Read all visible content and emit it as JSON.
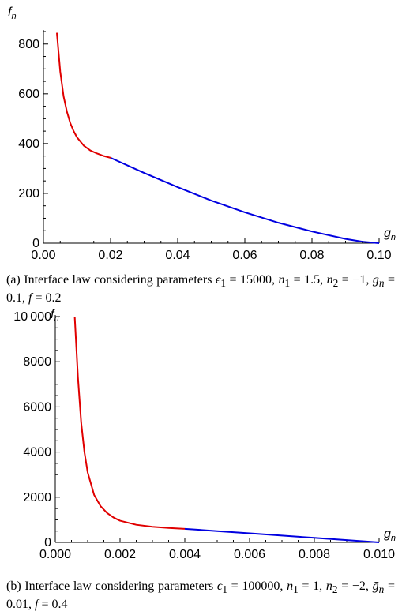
{
  "colors": {
    "initial_branch": "#e00000",
    "linear_branch": "#0000e0",
    "axis": "#000000"
  },
  "chart_data": [
    {
      "type": "line",
      "panel": "a",
      "xlabel_base": "g",
      "xlabel_sub": "n",
      "ylabel_base": "f",
      "ylabel_sub": "n",
      "xlim": [
        0,
        0.1
      ],
      "ylim": [
        0,
        850
      ],
      "x_ticks": [
        0,
        0.02,
        0.04,
        0.06,
        0.08,
        0.1
      ],
      "x_tick_labels": [
        "0.00",
        "0.02",
        "0.04",
        "0.06",
        "0.08",
        "0.10"
      ],
      "y_ticks": [
        0,
        200,
        400,
        600,
        800
      ],
      "y_tick_labels": [
        "0",
        "200",
        "400",
        "600",
        "800"
      ],
      "series": [
        {
          "color": "#e00000",
          "x": [
            0.004,
            0.005,
            0.006,
            0.007,
            0.008,
            0.009,
            0.01,
            0.012,
            0.014,
            0.016,
            0.018,
            0.02
          ],
          "y": [
            845,
            690,
            590,
            528,
            482,
            450,
            425,
            392,
            372,
            360,
            350,
            343
          ]
        },
        {
          "color": "#0000e0",
          "x": [
            0.02,
            0.03,
            0.04,
            0.05,
            0.06,
            0.07,
            0.08,
            0.09,
            0.095,
            0.1
          ],
          "y": [
            343,
            282,
            225,
            171,
            124,
            82,
            47,
            17,
            6,
            0
          ]
        }
      ]
    },
    {
      "type": "line",
      "panel": "b",
      "xlabel_base": "g",
      "xlabel_sub": "n",
      "ylabel_base": "f",
      "ylabel_sub": "n",
      "xlim": [
        0,
        0.01
      ],
      "ylim": [
        0,
        10000
      ],
      "x_ticks": [
        0,
        0.002,
        0.004,
        0.006,
        0.008,
        0.01
      ],
      "x_tick_labels": [
        "0.000",
        "0.002",
        "0.004",
        "0.006",
        "0.008",
        "0.010"
      ],
      "y_ticks": [
        0,
        2000,
        4000,
        6000,
        8000,
        10000
      ],
      "y_tick_labels": [
        "0",
        "2000",
        "4000",
        "6000",
        "8000",
        "10 000"
      ],
      "series": [
        {
          "color": "#e00000",
          "x": [
            0.0006,
            0.0007,
            0.0008,
            0.0009,
            0.001,
            0.0012,
            0.0014,
            0.0016,
            0.0018,
            0.002,
            0.0025,
            0.003,
            0.0035,
            0.004
          ],
          "y": [
            10000,
            7300,
            5300,
            4000,
            3100,
            2100,
            1600,
            1300,
            1100,
            960,
            780,
            690,
            640,
            600
          ]
        },
        {
          "color": "#0000e0",
          "x": [
            0.004,
            0.005,
            0.006,
            0.007,
            0.008,
            0.009,
            0.01
          ],
          "y": [
            600,
            500,
            400,
            300,
            200,
            100,
            0
          ]
        }
      ]
    }
  ],
  "captions": {
    "a_html": "(a) Interface law considering parameters <i>ϵ</i><sub>1</sub> = 15000, <i>n</i><sub>1</sub> = 1.5, <i>n</i><sub>2</sub> = −1, <i>ḡ</i><sub><i>n</i></sub> = 0.1, <i>f</i> = 0.2",
    "b_html": "(b) Interface law considering parameters <i>ϵ</i><sub>1</sub> = 100000, <i>n</i><sub>1</sub> = 1, <i>n</i><sub>2</sub> = −2, <i>ḡ</i><sub><i>n</i></sub> = 0.01, <i>f</i> = 0.4"
  }
}
